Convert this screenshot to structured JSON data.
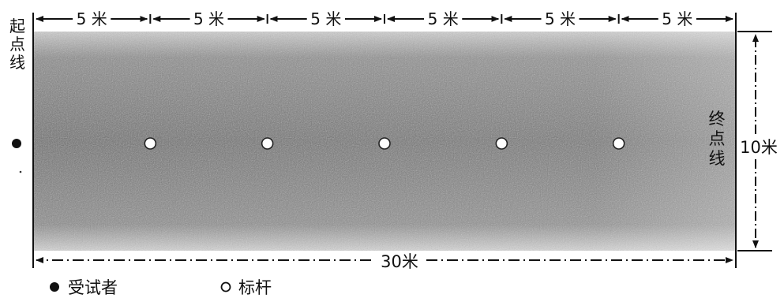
{
  "segments": [
    {
      "label": "5 米"
    },
    {
      "label": "5 米"
    },
    {
      "label": "5 米"
    },
    {
      "label": "5 米"
    },
    {
      "label": "5 米"
    },
    {
      "label": "5 米"
    }
  ],
  "start_line": {
    "label": [
      "起",
      "点",
      "线"
    ]
  },
  "end_line": {
    "label": [
      "终",
      "点",
      "线"
    ]
  },
  "width_label": "10米",
  "length_label": "30米",
  "pole_count": 5,
  "legend": {
    "subject_label": "受试者",
    "pole_label": "标杆"
  },
  "colors": {
    "field_dark": "#6e6e6e",
    "field_light": "#d8d8d8",
    "line": "#111111"
  }
}
